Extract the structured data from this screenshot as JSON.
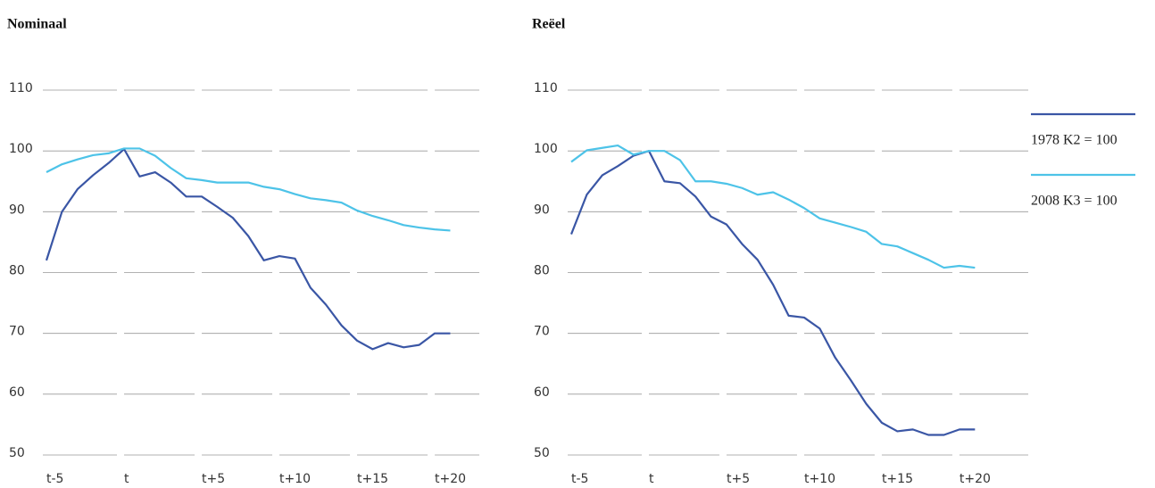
{
  "chart_data": [
    {
      "type": "line",
      "title": "Nominaal",
      "x": [
        -5,
        -4,
        -3,
        -2,
        -1,
        0,
        1,
        2,
        3,
        4,
        5,
        6,
        7,
        8,
        9,
        10,
        11,
        12,
        13,
        14,
        15,
        16,
        17,
        18,
        19,
        20,
        21
      ],
      "xlim": [
        -5.23,
        22.87
      ],
      "xticks": [
        {
          "value": -5,
          "label": "t-5"
        },
        {
          "value": 0,
          "label": "t"
        },
        {
          "value": 5,
          "label": "t+5"
        },
        {
          "value": 10,
          "label": "t+10"
        },
        {
          "value": 15,
          "label": "t+15"
        },
        {
          "value": 20,
          "label": "t+20"
        }
      ],
      "ylim": [
        50,
        110
      ],
      "yticks": [
        50,
        60,
        70,
        80,
        90,
        100,
        110
      ],
      "grid": true,
      "series": [
        {
          "color": "#3a56a5",
          "values": [
            82,
            90,
            93.7,
            96,
            98,
            100.3,
            95.8,
            96.5,
            94.8,
            92.5,
            92.5,
            90.8,
            89,
            86,
            82,
            82.7,
            82.3,
            77.5,
            74.7,
            71.3,
            68.8,
            67.4,
            68.4,
            67.7,
            68.1,
            70,
            70
          ]
        },
        {
          "color": "#4dc3e8",
          "values": [
            96.5,
            97.8,
            98.6,
            99.3,
            99.6,
            100.4,
            100.4,
            99.2,
            97.2,
            95.5,
            95.2,
            94.8,
            94.8,
            94.8,
            94.1,
            93.7,
            92.9,
            92.2,
            91.9,
            91.5,
            90.2,
            89.3,
            88.6,
            87.8,
            87.4,
            87.1,
            86.9
          ]
        }
      ]
    },
    {
      "type": "line",
      "title": "Reëel",
      "x": [
        -5,
        -4,
        -3,
        -2,
        -1,
        0,
        1,
        2,
        3,
        4,
        5,
        6,
        7,
        8,
        9,
        10,
        11,
        12,
        13,
        14,
        15,
        16,
        17,
        18,
        19,
        20,
        21
      ],
      "xlim": [
        -5.23,
        24.43
      ],
      "xticks": [
        {
          "value": -5,
          "label": "t-5"
        },
        {
          "value": 0,
          "label": "t"
        },
        {
          "value": 5,
          "label": "t+5"
        },
        {
          "value": 10,
          "label": "t+10"
        },
        {
          "value": 15,
          "label": "t+15"
        },
        {
          "value": 20,
          "label": "t+20"
        }
      ],
      "ylim": [
        50,
        110
      ],
      "yticks": [
        50,
        60,
        70,
        80,
        90,
        100,
        110
      ],
      "grid": true,
      "legend": "right",
      "series": [
        {
          "name": "1978 K2 = 100",
          "color": "#3a56a5",
          "values": [
            86.3,
            92.8,
            96,
            97.5,
            99.2,
            100,
            95,
            94.7,
            92.5,
            89.2,
            87.9,
            84.7,
            82.1,
            78,
            72.9,
            72.6,
            70.8,
            66,
            62.3,
            58.4,
            55.3,
            53.9,
            54.2,
            53.3,
            53.3,
            54.2,
            54.2
          ]
        },
        {
          "name": "2008 K3 = 100",
          "color": "#4dc3e8",
          "values": [
            98.2,
            100.1,
            100.5,
            100.9,
            99.4,
            100,
            100,
            98.5,
            95,
            95,
            94.6,
            93.9,
            92.8,
            93.2,
            92,
            90.6,
            88.9,
            88.2,
            87.5,
            86.7,
            84.7,
            84.3,
            83.2,
            82.1,
            80.8,
            81.1,
            80.8
          ]
        }
      ]
    }
  ]
}
